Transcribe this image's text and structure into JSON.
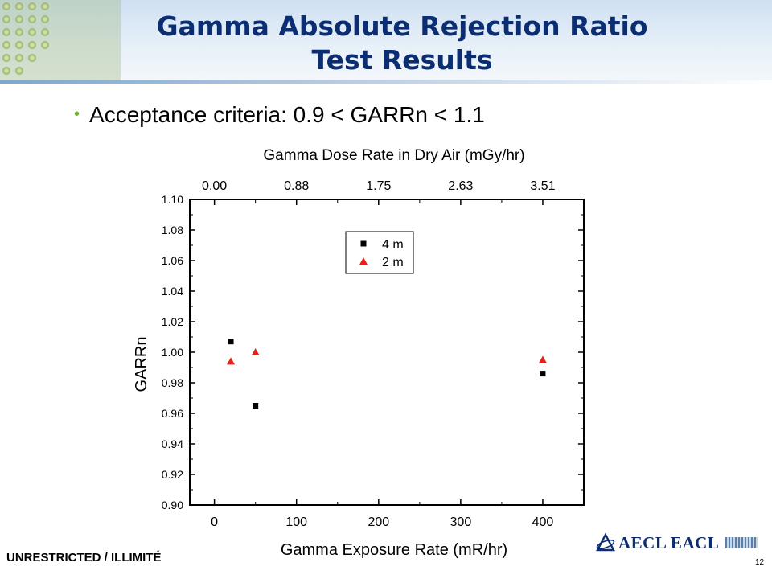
{
  "slide": {
    "title_line1": "Gamma Absolute Rejection Ratio",
    "title_line2": "Test Results",
    "bullet": "Acceptance criteria: 0.9 < GARRn < 1.1",
    "footer_classification": "UNRESTRICTED / ILLIMITÉ",
    "page_number": "12",
    "logo_text": "AECL EACL"
  },
  "colors": {
    "title": "#0b2d72",
    "bullet_dot": "#6fb52c",
    "series_4m": "#000000",
    "series_2m": "#e8201a"
  },
  "chart_data": {
    "type": "scatter",
    "xlabel": "Gamma Exposure Rate (mR/hr)",
    "ylabel": "GARRn",
    "top_xlabel": "Gamma Dose Rate in Dry Air (mGy/hr)",
    "xlim": [
      -30,
      450
    ],
    "ylim": [
      0.9,
      1.1
    ],
    "x_ticks": [
      0,
      100,
      200,
      300,
      400
    ],
    "y_ticks": [
      "0.90",
      "0.92",
      "0.94",
      "0.96",
      "0.98",
      "1.00",
      "1.02",
      "1.04",
      "1.06",
      "1.08",
      "1.10"
    ],
    "top_ticks": [
      {
        "x": 0,
        "label": "0.00"
      },
      {
        "x": 100,
        "label": "0.88"
      },
      {
        "x": 200,
        "label": "1.75"
      },
      {
        "x": 300,
        "label": "2.63"
      },
      {
        "x": 400,
        "label": "3.51"
      }
    ],
    "legend_position": "top-center",
    "grid": false,
    "series": [
      {
        "name": "4 m",
        "marker": "square",
        "color": "#000000",
        "points": [
          {
            "x": 20,
            "y": 1.007
          },
          {
            "x": 50,
            "y": 0.965
          },
          {
            "x": 400,
            "y": 0.986
          }
        ]
      },
      {
        "name": "2 m",
        "marker": "triangle",
        "color": "#e8201a",
        "points": [
          {
            "x": 20,
            "y": 0.994
          },
          {
            "x": 50,
            "y": 1.0
          },
          {
            "x": 400,
            "y": 0.995
          }
        ]
      }
    ]
  }
}
